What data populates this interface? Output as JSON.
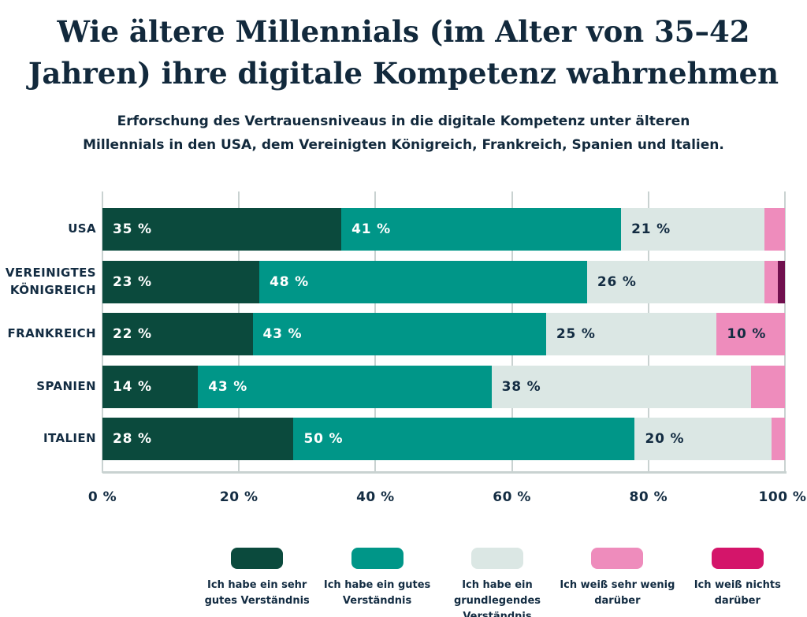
{
  "header": {
    "title_lines": [
      "Wie ältere Millennials (im Alter von 35–42",
      "Jahren) ihre digitale Kompetenz wahrnehmen"
    ],
    "subtitle_lines": [
      "Erforschung des Vertrauensniveaus in die digitale Kompetenz unter älteren",
      "Millennials in den USA, dem Vereinigten Königreich, Frankreich, Spanien und Italien."
    ]
  },
  "chart_data": {
    "type": "bar",
    "orientation": "horizontal",
    "stacked": true,
    "title": "Wie ältere Millennials (im Alter von 35–42 Jahren) ihre digitale Kompetenz wahrnehmen",
    "subtitle": "Erforschung des Vertrauensniveaus in die digitale Kompetenz unter älteren Millennials in den USA, dem Vereinigten Königreich, Frankreich, Spanien und Italien.",
    "categories": [
      "USA",
      "VEREINIGTES KÖNIGREICH",
      "FRANKREICH",
      "SPANIEN",
      "ITALIEN"
    ],
    "series": [
      {
        "name": "Ich habe ein sehr gutes Verständnis",
        "values": [
          35,
          23,
          22,
          14,
          28
        ],
        "color": "#0b4a3d",
        "label_color": "#ffffff"
      },
      {
        "name": "Ich habe ein gutes Verständnis",
        "values": [
          41,
          48,
          43,
          43,
          50
        ],
        "color": "#009688",
        "label_color": "#ffffff"
      },
      {
        "name": "Ich habe ein grundlegendes Verständnis",
        "values": [
          21,
          26,
          25,
          38,
          20
        ],
        "color": "#dbe7e4",
        "label_color": "#132c42"
      },
      {
        "name": "Ich weiß sehr wenig darüber",
        "values": [
          3,
          2,
          10,
          5,
          2
        ],
        "color": "#ee8cbc",
        "label_color": "#132c42"
      },
      {
        "name": "Ich weiß nichts darüber",
        "values": [
          0,
          1,
          0,
          0,
          0
        ],
        "color": "#70104e",
        "label_color": "#ffffff"
      }
    ],
    "x_axis": {
      "min": 0,
      "max": 100,
      "tick_step": 20,
      "ticks": [
        "0 %",
        "20 %",
        "40 %",
        "60 %",
        "80 %",
        "100 %"
      ]
    },
    "value_suffix": " %",
    "show_label_min_value": 10,
    "grid": true,
    "legend_position": "bottom"
  },
  "legend": {
    "items": [
      {
        "name": "legend-sehr-gutes-verstaendnis",
        "lines": [
          "Ich habe ein sehr",
          "gutes Verständnis"
        ],
        "color": "#0b4a3d"
      },
      {
        "name": "legend-gutes-verstaendnis",
        "lines": [
          "Ich habe ein gutes",
          "Verständnis"
        ],
        "color": "#009688"
      },
      {
        "name": "legend-grundlegendes-verstaendnis",
        "lines": [
          "Ich habe ein",
          "grundlegendes",
          "Verständnis"
        ],
        "color": "#dbe7e4"
      },
      {
        "name": "legend-weiss-sehr-wenig",
        "lines": [
          "Ich weiß sehr wenig",
          "darüber"
        ],
        "color": "#ee8cbc"
      },
      {
        "name": "legend-weiss-nichts",
        "lines": [
          "Ich weiß nichts",
          "darüber"
        ],
        "color": "#d4156a"
      }
    ]
  },
  "colors": {
    "background": "#ffffff",
    "text_navy": "#132c42",
    "gridline": "#c9d2d1",
    "dark_green": "#0b4a3d",
    "teal": "#009688",
    "pale_mint": "#dbe7e4",
    "pink": "#ee8cbc",
    "crimson_legend": "#d4156a",
    "plum_bar": "#70104e"
  }
}
